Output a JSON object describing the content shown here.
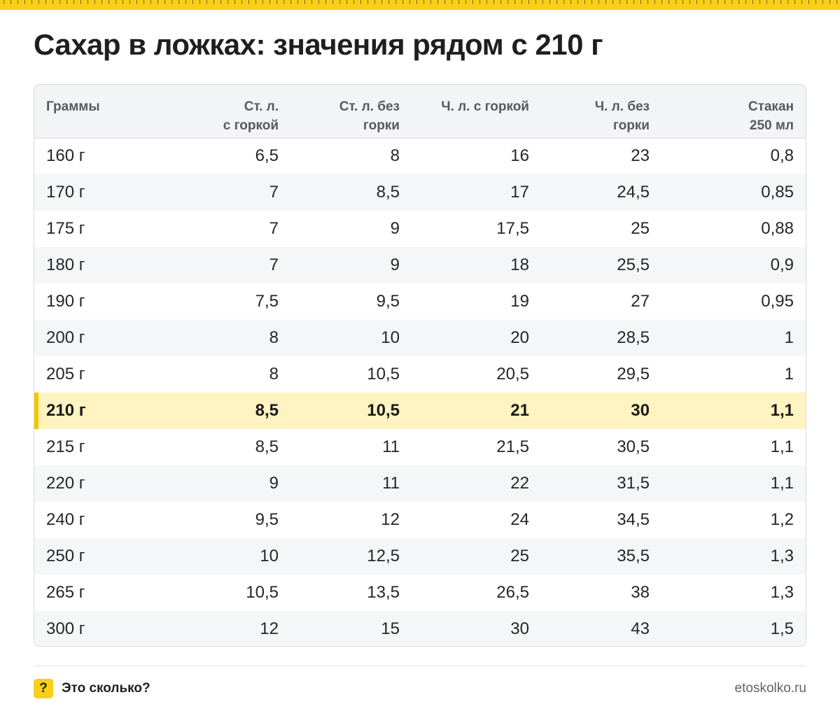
{
  "title": "Сахар в ложках: значения рядом с 210 г",
  "accent_color": "#f9cf1a",
  "highlight_row_color": "#fff3c2",
  "table": {
    "headers": [
      [
        "Граммы"
      ],
      [
        "Ст. л.",
        "с горкой"
      ],
      [
        "Ст. л. без",
        "горки"
      ],
      [
        "Ч. л. с горкой"
      ],
      [
        "Ч. л. без",
        "горки"
      ],
      [
        "Стакан",
        "250 мл"
      ]
    ],
    "highlight_index": 7,
    "rows": [
      [
        "160 г",
        "6,5",
        "8",
        "16",
        "23",
        "0,8"
      ],
      [
        "170 г",
        "7",
        "8,5",
        "17",
        "24,5",
        "0,85"
      ],
      [
        "175 г",
        "7",
        "9",
        "17,5",
        "25",
        "0,88"
      ],
      [
        "180 г",
        "7",
        "9",
        "18",
        "25,5",
        "0,9"
      ],
      [
        "190 г",
        "7,5",
        "9,5",
        "19",
        "27",
        "0,95"
      ],
      [
        "200 г",
        "8",
        "10",
        "20",
        "28,5",
        "1"
      ],
      [
        "205 г",
        "8",
        "10,5",
        "20,5",
        "29,5",
        "1"
      ],
      [
        "210 г",
        "8,5",
        "10,5",
        "21",
        "30",
        "1,1"
      ],
      [
        "215 г",
        "8,5",
        "11",
        "21,5",
        "30,5",
        "1,1"
      ],
      [
        "220 г",
        "9",
        "11",
        "22",
        "31,5",
        "1,1"
      ],
      [
        "240 г",
        "9,5",
        "12",
        "24",
        "34,5",
        "1,2"
      ],
      [
        "250 г",
        "10",
        "12,5",
        "25",
        "35,5",
        "1,3"
      ],
      [
        "265 г",
        "10,5",
        "13,5",
        "26,5",
        "38",
        "1,3"
      ],
      [
        "300 г",
        "12",
        "15",
        "30",
        "43",
        "1,5"
      ]
    ]
  },
  "footer": {
    "badge_symbol": "?",
    "brand": "Это сколько?",
    "url": "etoskolko.ru"
  }
}
